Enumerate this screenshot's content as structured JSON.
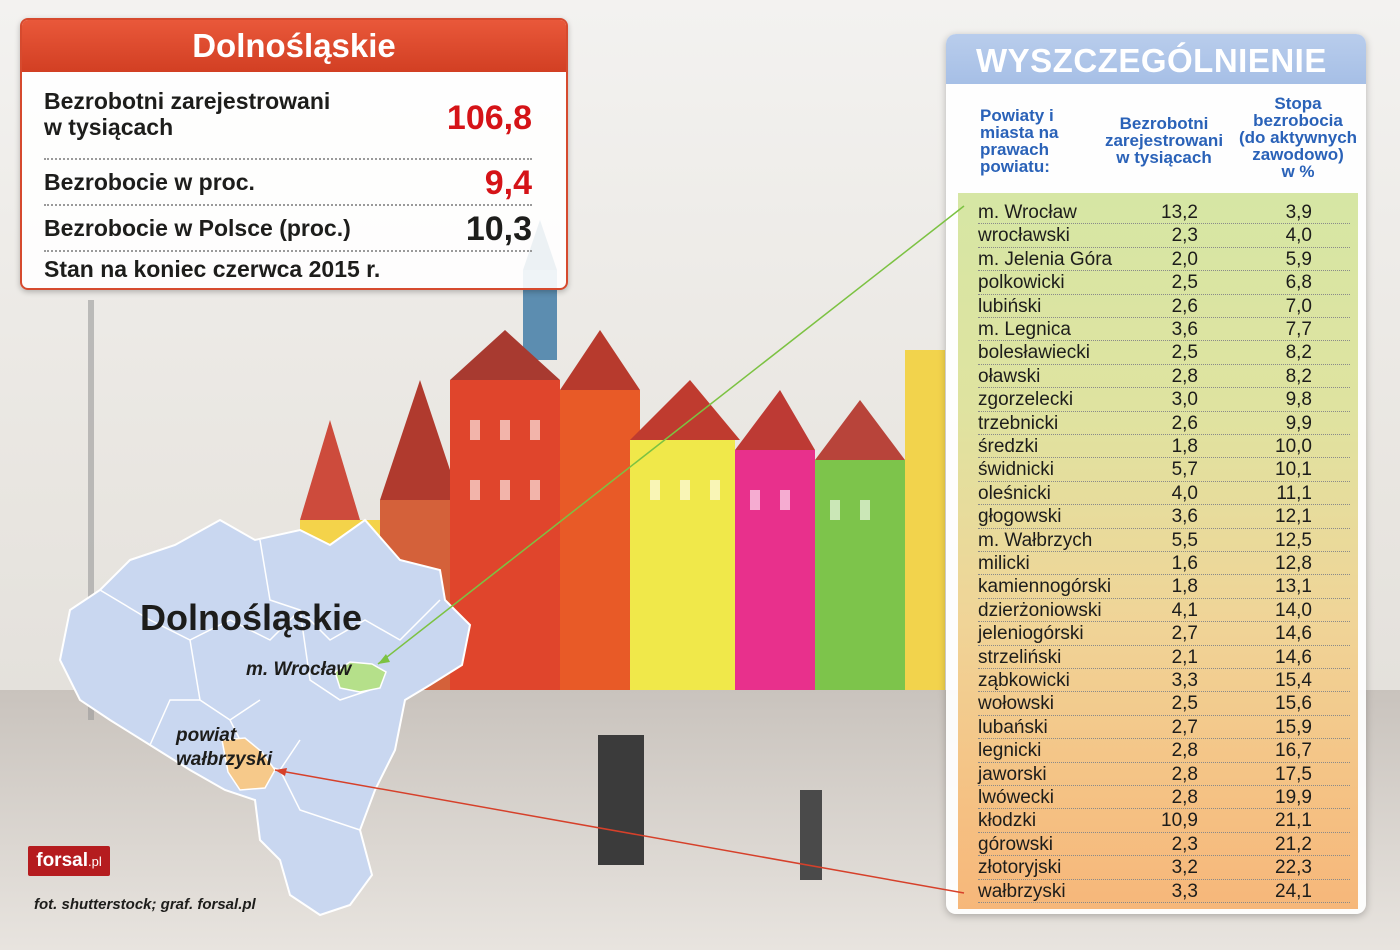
{
  "summary": {
    "title": "Dolnośląskie",
    "rows": [
      {
        "label": "Bezrobotni zarejestrowani\nw tysiącach",
        "value": "106,8",
        "color": "#d51317"
      },
      {
        "label": "Bezrobocie w proc.",
        "value": "9,4",
        "color": "#d51317"
      },
      {
        "label": "Bezrobocie w Polsce (proc.)",
        "value": "10,3",
        "color": "#1d1d1b"
      },
      {
        "label": "Stan na koniec czerwca 2015 r.",
        "value": ""
      }
    ]
  },
  "table": {
    "title": "WYSZCZEGÓLNIENIE",
    "headers": {
      "district": "Powiaty i\nmiasta na\nprawach\npowiatu:",
      "unemployed": "Bezrobotni\nzarejestrowani\nw tysiącach",
      "rate": "Stopa\nbezrobocia\n(do aktywnych\nzawodowo)\nw %"
    },
    "rows": [
      [
        "m. Wrocław",
        "13,2",
        "3,9"
      ],
      [
        "wrocławski",
        "2,3",
        "4,0"
      ],
      [
        "m. Jelenia Góra",
        "2,0",
        "5,9"
      ],
      [
        "polkowicki",
        "2,5",
        "6,8"
      ],
      [
        "lubiński",
        "2,6",
        "7,0"
      ],
      [
        "m. Legnica",
        "3,6",
        "7,7"
      ],
      [
        "bolesławiecki",
        "2,5",
        "8,2"
      ],
      [
        "oławski",
        "2,8",
        "8,2"
      ],
      [
        "zgorzelecki",
        "3,0",
        "9,8"
      ],
      [
        "trzebnicki",
        "2,6",
        "9,9"
      ],
      [
        "średzki",
        "1,8",
        "10,0"
      ],
      [
        "świdnicki",
        "5,7",
        "10,1"
      ],
      [
        "oleśnicki",
        "4,0",
        "11,1"
      ],
      [
        "głogowski",
        "3,6",
        "12,1"
      ],
      [
        "m. Wałbrzych",
        "5,5",
        "12,5"
      ],
      [
        "milicki",
        "1,6",
        "12,8"
      ],
      [
        "kamiennogórski",
        "1,8",
        "13,1"
      ],
      [
        "dzierżoniowski",
        "4,1",
        "14,0"
      ],
      [
        "jeleniogórski",
        "2,7",
        "14,6"
      ],
      [
        "strzeliński",
        "2,1",
        "14,6"
      ],
      [
        "ząbkowicki",
        "3,3",
        "15,4"
      ],
      [
        "wołowski",
        "2,5",
        "15,6"
      ],
      [
        "lubański",
        "2,7",
        "15,9"
      ],
      [
        "legnicki",
        "2,8",
        "16,7"
      ],
      [
        "jaworski",
        "2,8",
        "17,5"
      ],
      [
        "lwówecki",
        "2,8",
        "19,9"
      ],
      [
        "kłodzki",
        "10,9",
        "21,1"
      ],
      [
        "górowski",
        "2,3",
        "21,2"
      ],
      [
        "złotoryjski",
        "3,2",
        "22,3"
      ],
      [
        "wałbrzyski",
        "3,3",
        "24,1"
      ]
    ]
  },
  "map": {
    "region_label": "Dolnośląskie",
    "city_label": "m. Wrocław",
    "district_label": "powiat\nwałbrzyski",
    "colors": {
      "region": "#c9d7f0",
      "wroclaw": "#b5e08a",
      "walbrzych": "#f6c98a",
      "line_green": "#7cc242",
      "line_red": "#d6402a"
    }
  },
  "logo": {
    "text": "forsal",
    "suffix": ".pl"
  },
  "credit": "fot. shutterstock; graf. forsal.pl"
}
